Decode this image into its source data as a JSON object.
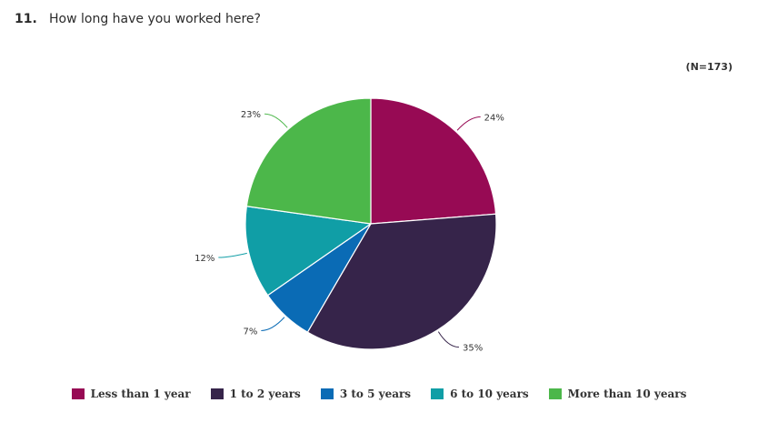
{
  "question": {
    "number": "11.",
    "text": "How long have you worked here?"
  },
  "sample_size": "(N=173)",
  "chart_data": {
    "type": "pie",
    "title": "",
    "start_angle_deg": 0,
    "direction": "clockwise",
    "slices": [
      {
        "name": "Less than 1 year",
        "value": 24,
        "label": "24%",
        "color": "#970a54"
      },
      {
        "name": "1 to 2 years",
        "value": 35,
        "label": "35%",
        "color": "#36244a"
      },
      {
        "name": "3 to 5 years",
        "value": 7,
        "label": "7%",
        "color": "#0a6bb5"
      },
      {
        "name": "6 to 10 years",
        "value": 12,
        "label": "12%",
        "color": "#109ea6"
      },
      {
        "name": "More than 10 years",
        "value": 23,
        "label": "23%",
        "color": "#4cb74a"
      }
    ],
    "legend_placement": "bottom"
  }
}
